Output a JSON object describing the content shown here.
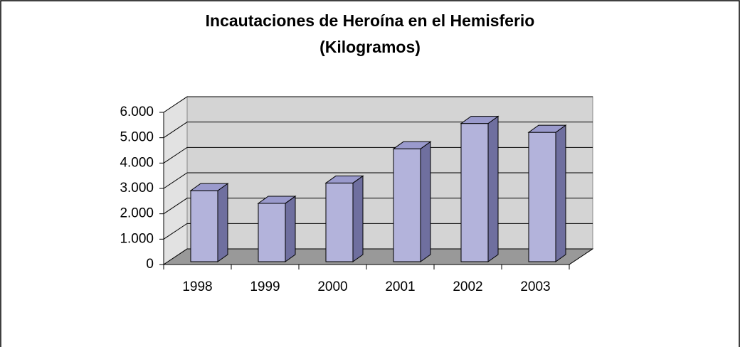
{
  "chart_data": {
    "type": "bar3d",
    "title": [
      "Incautaciones de Heroína en el Hemisferio",
      "(Kilogramos)"
    ],
    "categories": [
      "1998",
      "1999",
      "2000",
      "2001",
      "2002",
      "2003"
    ],
    "values": [
      2800,
      2300,
      3100,
      4450,
      5450,
      5100
    ],
    "color": "#b3b3db",
    "ylim": [
      0,
      6000
    ],
    "yticks": [
      0,
      {
        "value": 1000,
        "label": "1.000"
      },
      {
        "value": 2000,
        "label": "2.000"
      },
      {
        "value": 3000,
        "label": "3.000"
      },
      {
        "value": 4000,
        "label": "4.000"
      },
      {
        "value": 5000,
        "label": "5.000"
      },
      {
        "value": 6000,
        "label": "6.000"
      }
    ],
    "grid": true
  }
}
